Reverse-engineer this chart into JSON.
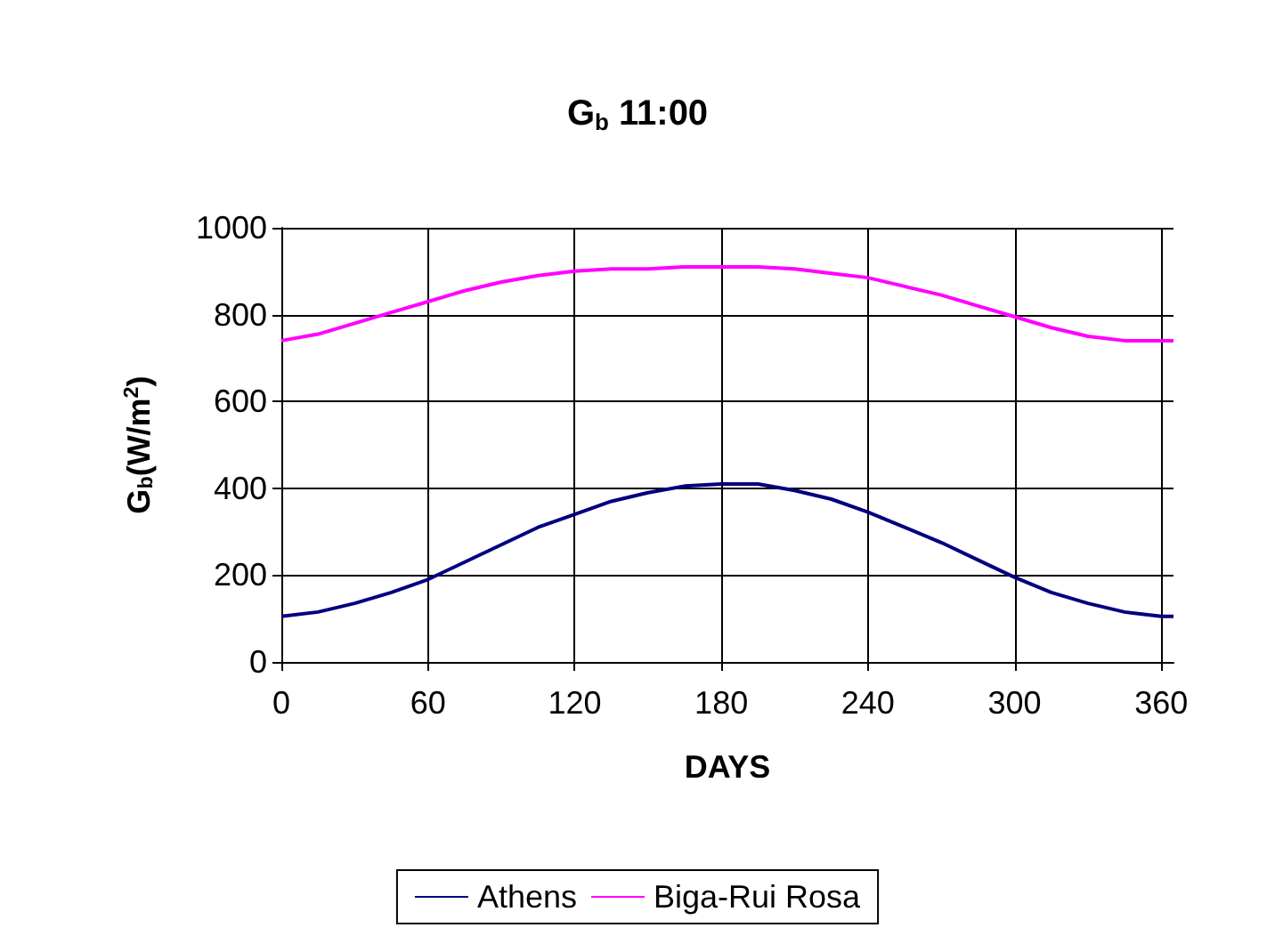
{
  "chart_data": {
    "type": "line",
    "title": "G$_{b}$ 11:00",
    "xlabel": "DAYS",
    "ylabel": "G$_{b}$(W/m$^{2}$)",
    "x": [
      0,
      15,
      30,
      45,
      60,
      75,
      90,
      105,
      120,
      135,
      150,
      165,
      180,
      195,
      210,
      225,
      240,
      255,
      270,
      285,
      300,
      315,
      330,
      345,
      360,
      365
    ],
    "series": [
      {
        "name": "Athens",
        "color": "#000080",
        "values": [
          105,
          115,
          135,
          160,
          190,
          230,
          270,
          310,
          340,
          370,
          390,
          405,
          410,
          410,
          395,
          375,
          345,
          310,
          275,
          235,
          195,
          160,
          135,
          115,
          105,
          105
        ]
      },
      {
        "name": "Biga-Rui Rosa",
        "color": "#ff00ff",
        "values": [
          740,
          755,
          780,
          805,
          830,
          855,
          875,
          890,
          900,
          905,
          905,
          910,
          910,
          910,
          905,
          895,
          885,
          865,
          845,
          820,
          795,
          770,
          750,
          740,
          740,
          740
        ]
      }
    ],
    "xlim": [
      0,
      365
    ],
    "xticks": [
      0,
      60,
      120,
      180,
      240,
      300,
      360
    ],
    "ylim": [
      0,
      1000
    ],
    "yticks": [
      0,
      200,
      400,
      600,
      800,
      1000
    ],
    "grid": true,
    "legend": "bottom",
    "marker": "none",
    "line_style": "solid"
  }
}
